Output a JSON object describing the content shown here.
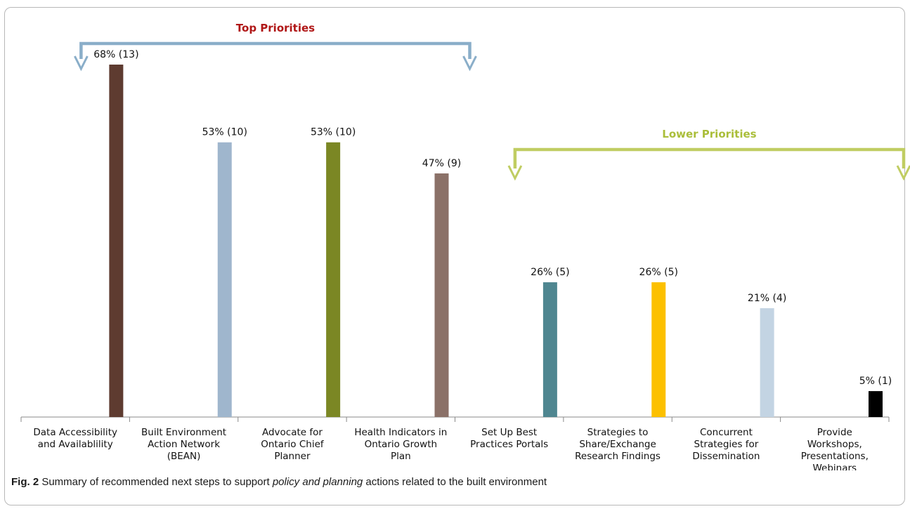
{
  "chart_data": {
    "type": "bar",
    "categories": [
      [
        "Data Accessibility",
        "and Availablility"
      ],
      [
        "Built Environment",
        "Action Network",
        "(BEAN)"
      ],
      [
        "Advocate for",
        "Ontario Chief",
        "Planner"
      ],
      [
        "Health Indicators in",
        "Ontario Growth",
        "Plan"
      ],
      [
        "Set Up Best",
        "Practices Portals"
      ],
      [
        "Strategies to",
        "Share/Exchange",
        "Research Findings"
      ],
      [
        "Concurrent",
        "Strategies for",
        "Dissemination"
      ],
      [
        "Provide",
        "Workshops,",
        "Presentations,",
        "Webinars"
      ]
    ],
    "values": [
      68,
      53,
      53,
      47,
      26,
      26,
      21,
      5
    ],
    "data_labels": [
      "68% (13)",
      "53% (10)",
      "53% (10)",
      "47% (9)",
      "26% (5)",
      "26% (5)",
      "21% (4)",
      "5% (1)"
    ],
    "colors": [
      "#5e3b30",
      "#9fb6cd",
      "#7b8724",
      "#8b7168",
      "#4f8690",
      "#fcc000",
      "#c3d4e3",
      "#000000"
    ],
    "ylim": [
      0,
      70
    ],
    "grid": false,
    "brackets": [
      {
        "label": "Top Priorities",
        "from": 0,
        "to": 3,
        "color": "#8aaec9",
        "label_color": "#b01717"
      },
      {
        "label": "Lower Priorities",
        "from": 4,
        "to": 7,
        "color": "#c0cd62",
        "label_color": "#aabe3a"
      }
    ]
  },
  "caption": {
    "fig": "Fig. 2",
    "text_before": " Summary of recommended next steps to support ",
    "emphasis": "policy and planning",
    "text_after": " actions related to the built environment"
  }
}
